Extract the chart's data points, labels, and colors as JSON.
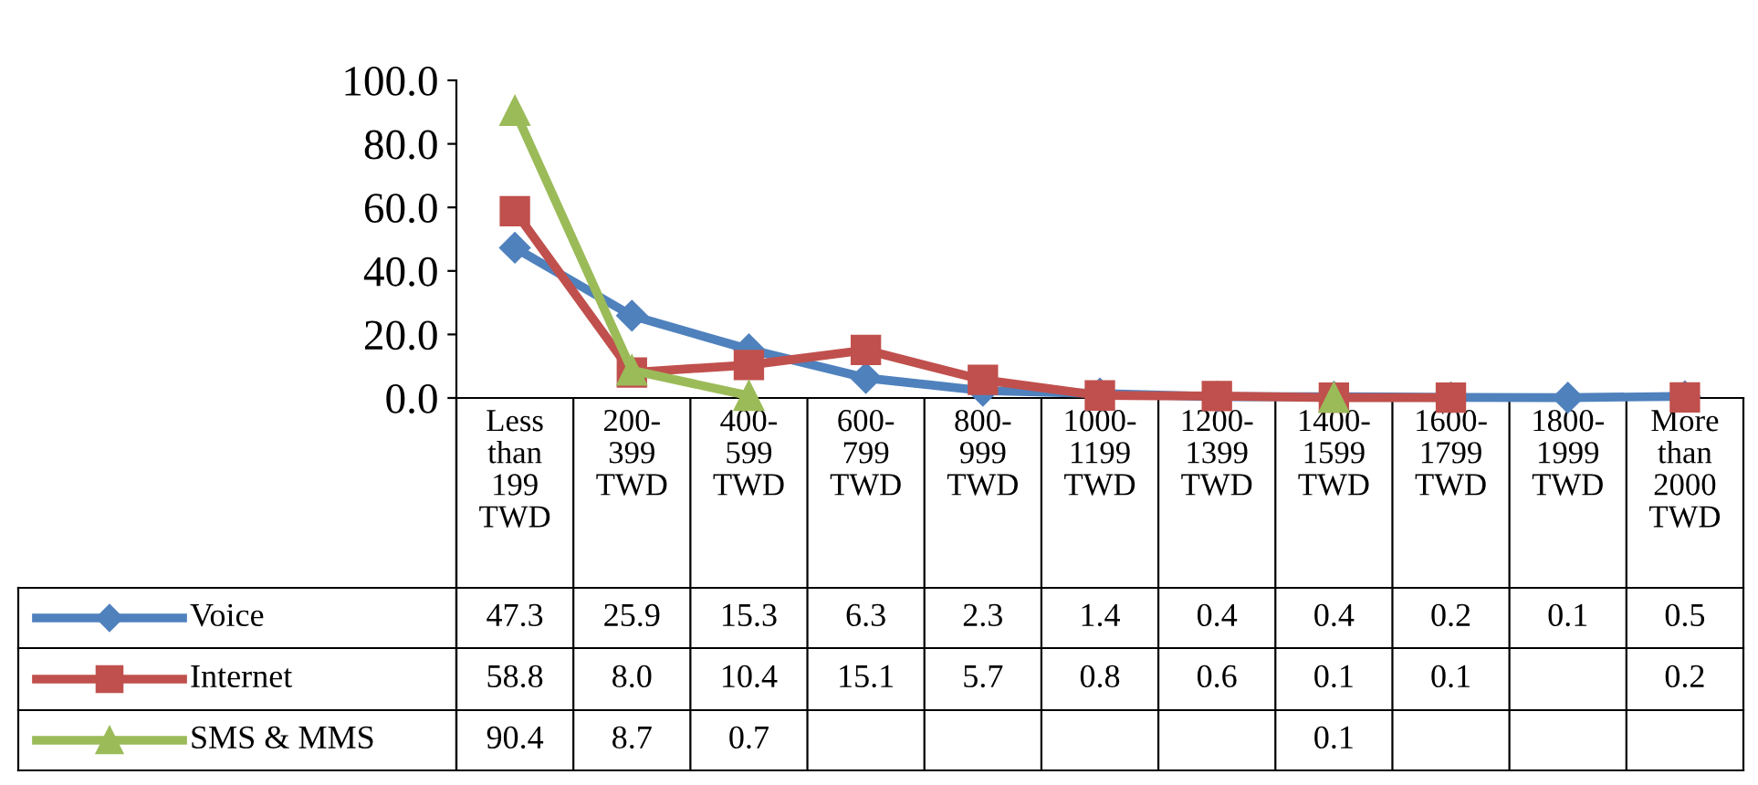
{
  "chart_data": {
    "type": "line",
    "categories": [
      "Less than 199 TWD",
      "200-399 TWD",
      "400-599 TWD",
      "600-799 TWD",
      "800-999 TWD",
      "1000-1199 TWD",
      "1200-1399 TWD",
      "1400-1599 TWD",
      "1600-1799 TWD",
      "1800-1999 TWD",
      "More than 2000 TWD"
    ],
    "series": [
      {
        "name": "Voice",
        "color": "#4f81bd",
        "marker": "diamond",
        "values": [
          47.3,
          25.9,
          15.3,
          6.3,
          2.3,
          1.4,
          0.4,
          0.4,
          0.2,
          0.1,
          0.5
        ],
        "value_labels": [
          "47.3",
          "25.9",
          "15.3",
          "6.3",
          "2.3",
          "1.4",
          "0.4",
          "0.4",
          "0.2",
          "0.1",
          "0.5"
        ]
      },
      {
        "name": "Internet",
        "color": "#c0504d",
        "marker": "square",
        "values": [
          58.8,
          8.0,
          10.4,
          15.1,
          5.7,
          0.8,
          0.6,
          0.1,
          0.1,
          null,
          0.2
        ],
        "value_labels": [
          "58.8",
          "8.0",
          "10.4",
          "15.1",
          "5.7",
          "0.8",
          "0.6",
          "0.1",
          "0.1",
          null,
          "0.2"
        ]
      },
      {
        "name": "SMS & MMS",
        "color": "#9bbb59",
        "marker": "triangle",
        "values": [
          90.4,
          8.7,
          0.7,
          null,
          null,
          null,
          null,
          0.1,
          null,
          null,
          null
        ],
        "value_labels": [
          "90.4",
          "8.7",
          "0.7",
          null,
          null,
          null,
          null,
          "0.1",
          null,
          null,
          null
        ]
      }
    ],
    "ylim": [
      0,
      100
    ],
    "yticks": [
      {
        "value": 0,
        "label": "0.0"
      },
      {
        "value": 20,
        "label": "20.0"
      },
      {
        "value": 40,
        "label": "40.0"
      },
      {
        "value": 60,
        "label": "60.0"
      },
      {
        "value": 80,
        "label": "80.0"
      },
      {
        "value": 100,
        "label": "100.0"
      }
    ],
    "grid": false,
    "legend": "bottom left",
    "line_style": "solid"
  }
}
